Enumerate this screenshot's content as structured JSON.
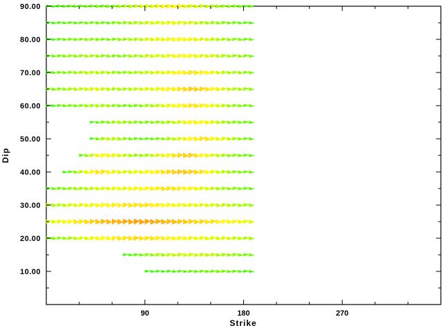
{
  "chart_data": {
    "type": "scatter",
    "title": "",
    "xlabel": "Strike",
    "ylabel": "Dip",
    "xlim": [
      0,
      360
    ],
    "ylim": [
      0,
      90
    ],
    "xticks": [
      90,
      180,
      270
    ],
    "xtick_labels": [
      "90",
      "180",
      "270"
    ],
    "yticks": [
      10,
      20,
      30,
      40,
      50,
      60,
      70,
      80,
      90
    ],
    "ytick_labels": [
      "10.00",
      "20.00",
      "30.00",
      "40.00",
      "50.00",
      "60.00",
      "70.00",
      "80.00",
      "90.00"
    ],
    "grid": false,
    "legend": "none",
    "strike_range": [
      0,
      185
    ],
    "strike_step": 5,
    "dip_rows": [
      10,
      15,
      20,
      25,
      30,
      35,
      40,
      45,
      50,
      55,
      60,
      65,
      70,
      75,
      80,
      85,
      90
    ],
    "row_quality": {
      "10": [
        0.0,
        0.0,
        0.0,
        0.0,
        0.0,
        0.0,
        0.0,
        0.0,
        0.0,
        0.0,
        0.0,
        0.0,
        0.0,
        0.0,
        0.0,
        0.0,
        0.0,
        0.0,
        0.05,
        0.06,
        0.08,
        0.08,
        0.1,
        0.12,
        0.12,
        0.15,
        0.15,
        0.15,
        0.18,
        0.18,
        0.2,
        0.2,
        0.2,
        0.18,
        0.15,
        0.12,
        0.1,
        0.1
      ],
      "15": [
        0.0,
        0.0,
        0.0,
        0.0,
        0.0,
        0.0,
        0.0,
        0.0,
        0.0,
        0.0,
        0.0,
        0.0,
        0.0,
        0.0,
        0.1,
        0.12,
        0.15,
        0.2,
        0.25,
        0.25,
        0.3,
        0.3,
        0.35,
        0.35,
        0.35,
        0.38,
        0.38,
        0.38,
        0.35,
        0.35,
        0.35,
        0.3,
        0.3,
        0.28,
        0.25,
        0.22,
        0.2,
        0.2
      ],
      "20": [
        0.2,
        0.22,
        0.25,
        0.28,
        0.3,
        0.35,
        0.4,
        0.42,
        0.45,
        0.48,
        0.5,
        0.5,
        0.52,
        0.55,
        0.55,
        0.55,
        0.58,
        0.55,
        0.55,
        0.55,
        0.52,
        0.52,
        0.5,
        0.5,
        0.48,
        0.48,
        0.45,
        0.45,
        0.45,
        0.42,
        0.42,
        0.4,
        0.4,
        0.38,
        0.35,
        0.35,
        0.32,
        0.3
      ],
      "25": [
        0.4,
        0.42,
        0.45,
        0.48,
        0.5,
        0.55,
        0.55,
        0.58,
        0.6,
        0.62,
        0.65,
        0.65,
        0.68,
        0.68,
        0.7,
        0.7,
        0.72,
        0.72,
        0.7,
        0.7,
        0.68,
        0.68,
        0.65,
        0.65,
        0.62,
        0.62,
        0.6,
        0.58,
        0.58,
        0.55,
        0.55,
        0.52,
        0.5,
        0.5,
        0.48,
        0.45,
        0.45,
        0.42
      ],
      "30": [
        0.3,
        0.32,
        0.35,
        0.35,
        0.38,
        0.4,
        0.42,
        0.45,
        0.45,
        0.48,
        0.5,
        0.5,
        0.52,
        0.52,
        0.55,
        0.55,
        0.55,
        0.55,
        0.55,
        0.52,
        0.52,
        0.5,
        0.5,
        0.48,
        0.48,
        0.45,
        0.45,
        0.42,
        0.42,
        0.4,
        0.4,
        0.38,
        0.35,
        0.35,
        0.32,
        0.3,
        0.3,
        0.28
      ],
      "35": [
        0.15,
        0.18,
        0.2,
        0.22,
        0.25,
        0.28,
        0.3,
        0.32,
        0.35,
        0.38,
        0.4,
        0.42,
        0.42,
        0.45,
        0.45,
        0.48,
        0.48,
        0.5,
        0.5,
        0.52,
        0.52,
        0.55,
        0.55,
        0.55,
        0.52,
        0.5,
        0.48,
        0.45,
        0.42,
        0.4,
        0.35,
        0.3,
        0.28,
        0.25,
        0.22,
        0.2,
        0.18,
        0.15
      ],
      "40": [
        0.0,
        0.0,
        0.0,
        0.1,
        0.15,
        0.25,
        0.35,
        0.45,
        0.5,
        0.55,
        0.55,
        0.5,
        0.45,
        0.42,
        0.4,
        0.4,
        0.42,
        0.45,
        0.48,
        0.5,
        0.52,
        0.55,
        0.58,
        0.6,
        0.62,
        0.62,
        0.6,
        0.58,
        0.55,
        0.5,
        0.45,
        0.4,
        0.35,
        0.3,
        0.25,
        0.22,
        0.2,
        0.18
      ],
      "45": [
        0.0,
        0.0,
        0.0,
        0.0,
        0.0,
        0.0,
        0.15,
        0.25,
        0.35,
        0.45,
        0.5,
        0.5,
        0.45,
        0.4,
        0.35,
        0.3,
        0.28,
        0.28,
        0.3,
        0.35,
        0.4,
        0.45,
        0.5,
        0.55,
        0.58,
        0.6,
        0.6,
        0.55,
        0.5,
        0.45,
        0.4,
        0.35,
        0.3,
        0.25,
        0.22,
        0.2,
        0.18,
        0.15
      ],
      "50": [
        0.0,
        0.0,
        0.0,
        0.0,
        0.0,
        0.0,
        0.0,
        0.0,
        0.1,
        0.2,
        0.3,
        0.35,
        0.35,
        0.3,
        0.25,
        0.2,
        0.18,
        0.15,
        0.15,
        0.18,
        0.2,
        0.25,
        0.3,
        0.35,
        0.4,
        0.45,
        0.5,
        0.52,
        0.55,
        0.55,
        0.5,
        0.45,
        0.4,
        0.35,
        0.3,
        0.25,
        0.2,
        0.15
      ],
      "55": [
        0.0,
        0.0,
        0.0,
        0.0,
        0.0,
        0.0,
        0.0,
        0.0,
        0.1,
        0.15,
        0.2,
        0.25,
        0.28,
        0.3,
        0.28,
        0.25,
        0.22,
        0.2,
        0.2,
        0.22,
        0.25,
        0.28,
        0.3,
        0.35,
        0.4,
        0.45,
        0.5,
        0.52,
        0.5,
        0.45,
        0.4,
        0.35,
        0.3,
        0.25,
        0.22,
        0.2,
        0.18,
        0.15
      ],
      "60": [
        0.1,
        0.12,
        0.15,
        0.18,
        0.2,
        0.22,
        0.25,
        0.28,
        0.3,
        0.32,
        0.3,
        0.28,
        0.25,
        0.22,
        0.2,
        0.2,
        0.22,
        0.25,
        0.28,
        0.3,
        0.35,
        0.4,
        0.45,
        0.48,
        0.5,
        0.52,
        0.55,
        0.55,
        0.52,
        0.5,
        0.45,
        0.4,
        0.35,
        0.3,
        0.25,
        0.22,
        0.2,
        0.18
      ],
      "65": [
        0.2,
        0.22,
        0.25,
        0.28,
        0.3,
        0.32,
        0.35,
        0.38,
        0.4,
        0.4,
        0.38,
        0.35,
        0.32,
        0.3,
        0.3,
        0.32,
        0.35,
        0.38,
        0.4,
        0.42,
        0.45,
        0.48,
        0.5,
        0.52,
        0.55,
        0.58,
        0.6,
        0.6,
        0.58,
        0.55,
        0.5,
        0.45,
        0.4,
        0.35,
        0.32,
        0.3,
        0.28,
        0.25
      ],
      "70": [
        0.15,
        0.18,
        0.2,
        0.22,
        0.25,
        0.28,
        0.3,
        0.32,
        0.35,
        0.35,
        0.32,
        0.3,
        0.28,
        0.25,
        0.25,
        0.28,
        0.3,
        0.32,
        0.35,
        0.38,
        0.4,
        0.42,
        0.45,
        0.48,
        0.5,
        0.52,
        0.55,
        0.55,
        0.52,
        0.5,
        0.45,
        0.4,
        0.35,
        0.32,
        0.3,
        0.28,
        0.25,
        0.22
      ],
      "75": [
        0.15,
        0.18,
        0.2,
        0.22,
        0.25,
        0.25,
        0.28,
        0.3,
        0.3,
        0.28,
        0.25,
        0.25,
        0.22,
        0.22,
        0.25,
        0.28,
        0.3,
        0.32,
        0.35,
        0.38,
        0.4,
        0.42,
        0.45,
        0.48,
        0.5,
        0.5,
        0.48,
        0.45,
        0.42,
        0.4,
        0.38,
        0.35,
        0.32,
        0.3,
        0.28,
        0.25,
        0.22,
        0.2
      ],
      "80": [
        0.1,
        0.12,
        0.15,
        0.18,
        0.2,
        0.2,
        0.22,
        0.25,
        0.25,
        0.22,
        0.2,
        0.2,
        0.22,
        0.25,
        0.28,
        0.3,
        0.32,
        0.35,
        0.38,
        0.4,
        0.42,
        0.45,
        0.48,
        0.5,
        0.5,
        0.48,
        0.45,
        0.42,
        0.4,
        0.38,
        0.35,
        0.32,
        0.3,
        0.28,
        0.25,
        0.22,
        0.2,
        0.18
      ],
      "85": [
        0.1,
        0.1,
        0.12,
        0.12,
        0.15,
        0.15,
        0.18,
        0.18,
        0.2,
        0.2,
        0.18,
        0.18,
        0.2,
        0.22,
        0.25,
        0.28,
        0.3,
        0.32,
        0.35,
        0.38,
        0.4,
        0.42,
        0.45,
        0.45,
        0.42,
        0.4,
        0.38,
        0.35,
        0.32,
        0.3,
        0.28,
        0.25,
        0.22,
        0.2,
        0.18,
        0.15,
        0.15,
        0.12
      ],
      "90": [
        0.1,
        0.1,
        0.12,
        0.12,
        0.15,
        0.15,
        0.18,
        0.18,
        0.2,
        0.2,
        0.2,
        0.22,
        0.25,
        0.28,
        0.3,
        0.32,
        0.35,
        0.38,
        0.4,
        0.42,
        0.45,
        0.48,
        0.5,
        0.5,
        0.48,
        0.45,
        0.42,
        0.4,
        0.38,
        0.35,
        0.32,
        0.3,
        0.28,
        0.25,
        0.22,
        0.2,
        0.18,
        0.15
      ]
    },
    "colors": {
      "low": "#00ff00",
      "mid": "#ffff00",
      "high": "#ff3300",
      "axis": "#000000",
      "background": "#ffffff"
    }
  }
}
